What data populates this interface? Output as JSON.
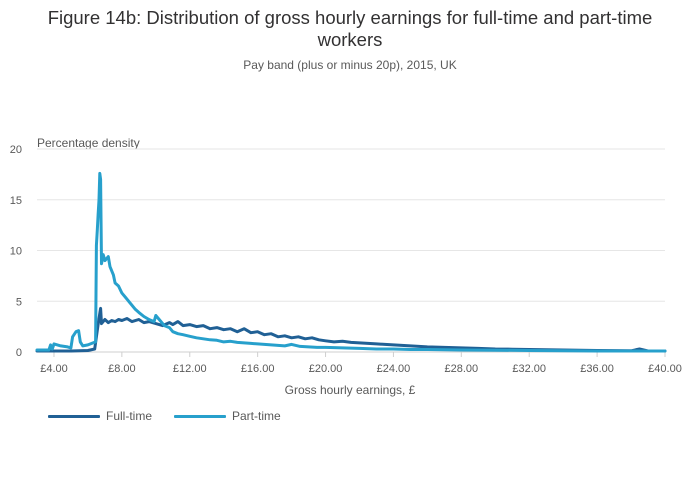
{
  "chart_data": {
    "type": "line",
    "title_lines": [
      "Figure 14b: Distribution of gross hourly earnings for full-time and part-time",
      "workers"
    ],
    "subtitle": "Pay band (plus or minus 20p), 2015, UK",
    "ylabel": "Percentage density",
    "xlabel": "Gross hourly earnings, £",
    "xlim": [
      3.0,
      40.0
    ],
    "ylim": [
      0,
      20
    ],
    "x_ticks": [
      4,
      8,
      12,
      16,
      20,
      24,
      28,
      32,
      36,
      40
    ],
    "x_tick_labels": [
      "£4.00",
      "£8.00",
      "£12.00",
      "£16.00",
      "£20.00",
      "£24.00",
      "£28.00",
      "£32.00",
      "£36.00",
      "£40.00"
    ],
    "y_ticks": [
      0,
      5,
      10,
      15,
      20
    ],
    "y_tick_labels": [
      "0",
      "5",
      "10",
      "15",
      "20"
    ],
    "grid": true,
    "legend_position": "bottom-left",
    "series": [
      {
        "name": "Full-time",
        "color": "#206095",
        "x": [
          3.0,
          4.0,
          5.0,
          6.0,
          6.4,
          6.5,
          6.6,
          6.7,
          6.75,
          6.8,
          7.0,
          7.2,
          7.4,
          7.6,
          7.8,
          8.0,
          8.3,
          8.6,
          9.0,
          9.3,
          9.6,
          10.0,
          10.4,
          10.8,
          11.0,
          11.3,
          11.6,
          12.0,
          12.4,
          12.8,
          13.2,
          13.6,
          14.0,
          14.4,
          14.8,
          15.2,
          15.6,
          16.0,
          16.4,
          16.8,
          17.2,
          17.6,
          18.0,
          18.4,
          18.8,
          19.2,
          19.6,
          20.0,
          20.5,
          21.0,
          21.5,
          22.0,
          22.5,
          23.0,
          23.5,
          24.0,
          25.0,
          26.0,
          27.0,
          28.0,
          29.0,
          30.0,
          31.0,
          32.0,
          34.0,
          36.0,
          38.0,
          38.5,
          39.0,
          40.0
        ],
        "values": [
          0.1,
          0.1,
          0.1,
          0.15,
          0.3,
          1.5,
          2.7,
          3.8,
          4.3,
          2.8,
          3.2,
          2.9,
          3.1,
          3.0,
          3.2,
          3.1,
          3.3,
          3.0,
          3.2,
          2.9,
          3.0,
          2.8,
          2.6,
          2.9,
          2.7,
          3.0,
          2.6,
          2.7,
          2.5,
          2.6,
          2.3,
          2.4,
          2.2,
          2.3,
          2.0,
          2.3,
          1.9,
          2.0,
          1.7,
          1.8,
          1.5,
          1.6,
          1.4,
          1.5,
          1.3,
          1.4,
          1.2,
          1.1,
          1.0,
          1.05,
          0.95,
          0.9,
          0.85,
          0.8,
          0.75,
          0.7,
          0.6,
          0.5,
          0.45,
          0.4,
          0.35,
          0.3,
          0.28,
          0.25,
          0.2,
          0.15,
          0.12,
          0.3,
          0.1,
          0.1
        ]
      },
      {
        "name": "Part-time",
        "color": "#27a0cc",
        "x": [
          3.0,
          3.7,
          3.8,
          3.9,
          4.0,
          4.4,
          4.8,
          5.0,
          5.1,
          5.3,
          5.45,
          5.55,
          5.7,
          6.0,
          6.3,
          6.45,
          6.5,
          6.55,
          6.6,
          6.65,
          6.7,
          6.75,
          6.8,
          6.9,
          7.0,
          7.2,
          7.3,
          7.5,
          7.6,
          7.8,
          8.0,
          8.3,
          8.6,
          8.8,
          9.0,
          9.3,
          9.6,
          9.9,
          10.0,
          10.2,
          10.5,
          10.8,
          11.0,
          11.3,
          11.6,
          12.0,
          12.4,
          12.8,
          13.2,
          13.6,
          14.0,
          14.4,
          14.8,
          15.2,
          15.6,
          16.0,
          16.4,
          16.8,
          17.2,
          17.6,
          18.0,
          18.5,
          19.0,
          19.5,
          20.0,
          21.0,
          22.0,
          23.0,
          24.0,
          25.0,
          26.0,
          28.0,
          30.0,
          32.0,
          34.0,
          36.0,
          38.0,
          40.0
        ],
        "values": [
          0.2,
          0.2,
          0.7,
          0.3,
          0.8,
          0.6,
          0.5,
          0.4,
          1.5,
          2.0,
          2.1,
          1.0,
          0.6,
          0.7,
          0.9,
          1.0,
          10.5,
          12.0,
          13.5,
          15.0,
          17.6,
          17.0,
          8.7,
          9.6,
          9.0,
          9.4,
          8.4,
          7.6,
          6.8,
          6.5,
          5.8,
          5.2,
          4.6,
          4.2,
          3.9,
          3.5,
          3.2,
          3.0,
          3.6,
          3.2,
          2.6,
          2.4,
          2.0,
          1.8,
          1.7,
          1.55,
          1.4,
          1.3,
          1.2,
          1.15,
          1.0,
          1.05,
          0.95,
          0.9,
          0.85,
          0.8,
          0.75,
          0.7,
          0.65,
          0.6,
          0.75,
          0.55,
          0.5,
          0.45,
          0.45,
          0.4,
          0.35,
          0.3,
          0.3,
          0.25,
          0.25,
          0.2,
          0.18,
          0.15,
          0.12,
          0.1,
          0.1,
          0.1
        ]
      }
    ]
  }
}
